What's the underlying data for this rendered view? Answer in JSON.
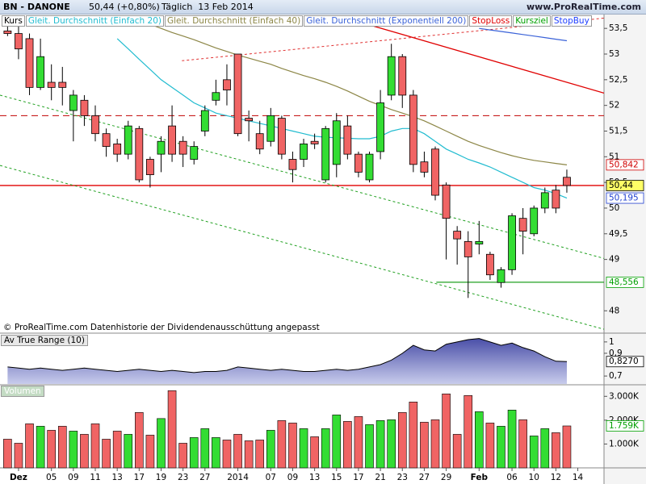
{
  "chart_data": {
    "type": "candlestick",
    "symbol": "BN - DANONE",
    "quote": "50,44 (+0,80%)",
    "period": "Täglich  13 Feb 2014",
    "site": "www.ProRealTime.com",
    "footer": "© ProRealTime.com  Datenhistorie der Dividendenausschüttung angepasst",
    "name": "Kurs",
    "color": "#000000",
    "up_color": "#33dd33",
    "down_color": "#f06464",
    "categories": [
      null,
      "Dez",
      null,
      null,
      "05",
      null,
      "09",
      null,
      "11",
      null,
      "13",
      null,
      "17",
      null,
      "19",
      null,
      "23",
      null,
      "27",
      null,
      null,
      "2014",
      null,
      null,
      "07",
      null,
      "09",
      null,
      "13",
      null,
      "15",
      null,
      "17",
      null,
      "21",
      null,
      "23",
      null,
      "27",
      null,
      "29",
      null,
      null,
      "Feb",
      null,
      null,
      "06",
      null,
      "10",
      null,
      "12",
      null,
      "14"
    ],
    "open": [
      53.45,
      53.4,
      53.3,
      52.35,
      52.45,
      52.45,
      51.9,
      52.1,
      51.8,
      51.45,
      51.25,
      51.05,
      51.55,
      50.95,
      51.05,
      51.6,
      51.3,
      50.95,
      51.5,
      52.1,
      52.5,
      53.0,
      51.75,
      51.45,
      51.3,
      51.75,
      50.95,
      50.95,
      51.3,
      50.55,
      50.85,
      51.6,
      51.05,
      50.55,
      51.1,
      52.2,
      52.95,
      52.2,
      50.9,
      51.15,
      50.45,
      49.55,
      49.35,
      49.3,
      49.1,
      48.55,
      48.8,
      49.8,
      49.5,
      50.0,
      50.35,
      50.6,
      null
    ],
    "high": [
      53.55,
      53.6,
      53.4,
      53.3,
      52.8,
      52.75,
      52.3,
      52.2,
      52.0,
      51.55,
      51.35,
      51.7,
      51.6,
      51.0,
      51.4,
      52.0,
      51.4,
      51.3,
      52.0,
      52.5,
      52.8,
      53.0,
      51.9,
      51.7,
      51.95,
      51.8,
      51.1,
      51.35,
      51.45,
      51.6,
      51.85,
      51.8,
      51.1,
      51.1,
      52.3,
      53.2,
      53.0,
      52.3,
      51.1,
      51.2,
      50.5,
      49.65,
      49.55,
      49.75,
      49.15,
      48.85,
      49.9,
      50.0,
      50.05,
      50.4,
      50.45,
      50.75,
      null
    ],
    "low": [
      53.35,
      52.9,
      52.2,
      52.3,
      52.1,
      52.0,
      51.3,
      51.6,
      51.3,
      51.0,
      50.9,
      50.95,
      50.5,
      50.4,
      50.7,
      50.9,
      50.8,
      50.85,
      51.4,
      52.0,
      52.0,
      51.4,
      51.3,
      51.05,
      51.2,
      50.95,
      50.5,
      50.8,
      51.15,
      50.5,
      50.6,
      50.95,
      50.6,
      50.5,
      50.95,
      52.1,
      51.95,
      50.7,
      50.6,
      50.15,
      49.0,
      48.9,
      48.25,
      49.1,
      48.6,
      48.45,
      48.7,
      49.1,
      49.45,
      49.9,
      49.9,
      50.3,
      null
    ],
    "close": [
      53.4,
      53.1,
      52.35,
      52.95,
      52.35,
      52.35,
      52.2,
      51.8,
      51.45,
      51.2,
      51.05,
      51.6,
      50.55,
      50.65,
      51.3,
      51.05,
      51.05,
      51.2,
      51.9,
      52.25,
      52.3,
      51.45,
      51.7,
      51.15,
      51.8,
      51.05,
      50.75,
      51.25,
      51.25,
      51.55,
      51.7,
      51.05,
      50.7,
      51.05,
      52.05,
      52.95,
      52.2,
      50.85,
      50.7,
      50.25,
      49.8,
      49.4,
      49.05,
      49.35,
      48.7,
      48.8,
      49.85,
      49.55,
      50.0,
      50.3,
      50.0,
      50.44,
      null
    ],
    "xlim": [
      -0.69,
      54.39
    ],
    "ylim": [
      47.58,
      53.77
    ],
    "yticks": [
      {
        "value": 53.5,
        "label": "53,5"
      },
      53,
      {
        "value": 52.5,
        "label": "52,5"
      },
      52,
      {
        "value": 51.5,
        "label": "51,5"
      },
      51,
      {
        "value": 50.5,
        "label": "50,5"
      },
      50,
      {
        "value": 49.5,
        "label": "49,5"
      },
      49,
      48
    ],
    "series": [
      {
        "name": "Gleit. Durchschnitt (Einfach 20)",
        "color": "#22bcd0",
        "values": [
          null,
          null,
          null,
          null,
          null,
          null,
          null,
          null,
          null,
          null,
          53.3,
          53.1,
          52.9,
          52.7,
          52.5,
          52.35,
          52.2,
          52.05,
          51.95,
          51.85,
          51.8,
          51.75,
          51.7,
          51.65,
          51.6,
          51.55,
          51.5,
          51.45,
          51.4,
          51.38,
          51.37,
          51.36,
          51.35,
          51.35,
          51.4,
          51.5,
          51.55,
          51.55,
          51.45,
          51.3,
          51.15,
          51.05,
          50.95,
          50.88,
          50.8,
          50.7,
          50.6,
          50.5,
          50.4,
          50.35,
          50.28,
          50.195,
          null
        ]
      },
      {
        "name": "Gleit. Durchschnitt (Einfach 40)",
        "color": "#8c8646",
        "values": [
          null,
          null,
          null,
          null,
          null,
          null,
          null,
          null,
          null,
          null,
          null,
          null,
          null,
          53.58,
          53.5,
          53.42,
          53.35,
          53.28,
          53.2,
          53.12,
          53.05,
          52.98,
          52.92,
          52.86,
          52.8,
          52.72,
          52.65,
          52.58,
          52.52,
          52.45,
          52.37,
          52.28,
          52.18,
          52.08,
          52.0,
          51.92,
          51.85,
          51.78,
          51.7,
          51.6,
          51.5,
          51.4,
          51.3,
          51.22,
          51.15,
          51.08,
          51.02,
          50.97,
          50.93,
          50.9,
          50.87,
          50.842,
          null
        ]
      },
      {
        "name": "Gleit. Durchschnitt (Exponentiell 200)",
        "color": "#3a62d8",
        "values": [
          null,
          null,
          null,
          null,
          null,
          null,
          null,
          null,
          null,
          null,
          null,
          null,
          null,
          null,
          null,
          null,
          null,
          null,
          null,
          null,
          null,
          null,
          null,
          null,
          null,
          null,
          null,
          null,
          null,
          null,
          null,
          null,
          null,
          null,
          null,
          null,
          null,
          null,
          null,
          null,
          null,
          null,
          null,
          53.5,
          53.47,
          53.44,
          53.41,
          53.38,
          53.35,
          53.32,
          53.29,
          53.26,
          null
        ]
      }
    ],
    "tools": [
      {
        "name": "StopLoss",
        "color": "#e00000"
      },
      {
        "name": "Kursziel",
        "color": "#00a000"
      },
      {
        "name": "StopBuy",
        "color": "#2040ff"
      }
    ],
    "trendlines": [
      {
        "color": "#c00000",
        "dashed": true,
        "x": [
          -0.69,
          54.39
        ],
        "y": [
          51.8,
          51.8
        ]
      },
      {
        "color": "#e00000",
        "dashed": false,
        "x": [
          -0.69,
          54.39
        ],
        "y": [
          50.44,
          50.44
        ]
      },
      {
        "color": "#e00000",
        "dashed": false,
        "x": [
          32.8,
          54.39
        ],
        "y": [
          53.58,
          52.24
        ]
      },
      {
        "color": "#e03030",
        "dashed": true,
        "x": [
          15.9,
          54.39
        ],
        "y": [
          52.87,
          53.7
        ]
      },
      {
        "color": "#20a020",
        "dashed": true,
        "x": [
          -0.69,
          54.39
        ],
        "y": [
          52.2,
          49.02
        ]
      },
      {
        "color": "#20a020",
        "dashed": true,
        "x": [
          -0.69,
          54.39
        ],
        "y": [
          50.83,
          47.64
        ]
      },
      {
        "color": "#20a020",
        "dashed": false,
        "x": [
          39.1,
          54.39
        ],
        "y": [
          48.556,
          48.556
        ]
      }
    ],
    "markers": [
      {
        "value": 50.842,
        "label": "50,842",
        "color": "#d00000",
        "background": "#ffffff"
      },
      {
        "value": 50.44,
        "label": "50,44",
        "color": "#000000",
        "background": "#ffff66"
      },
      {
        "value": 50.195,
        "label": "50,195",
        "color": "#2040d0",
        "background": "#ffffff"
      },
      {
        "value": 48.556,
        "label": "48,556",
        "color": "#00a000",
        "background": "#ffffff"
      }
    ],
    "atr": {
      "title": "Av True Range (10)",
      "color": "#5a5fb8",
      "values": [
        0.78,
        0.77,
        0.76,
        0.77,
        0.76,
        0.75,
        0.76,
        0.77,
        0.76,
        0.75,
        0.74,
        0.75,
        0.76,
        0.75,
        0.74,
        0.75,
        0.74,
        0.73,
        0.74,
        0.74,
        0.75,
        0.78,
        0.77,
        0.76,
        0.75,
        0.76,
        0.75,
        0.74,
        0.74,
        0.75,
        0.76,
        0.75,
        0.76,
        0.78,
        0.8,
        0.84,
        0.9,
        0.97,
        0.93,
        0.92,
        0.98,
        1.0,
        1.02,
        1.03,
        1.0,
        0.97,
        0.99,
        0.95,
        0.92,
        0.87,
        0.83,
        0.827,
        null
      ],
      "ylim": [
        0.63,
        1.07
      ],
      "yticks": [
        1,
        {
          "value": 0.9,
          "label": "0,9"
        },
        {
          "value": 0.7,
          "label": "0,7"
        }
      ],
      "markers": [
        {
          "value": 0.827,
          "label": "0,8270",
          "color": "#000000",
          "background": "#ffffff"
        }
      ]
    },
    "volume": {
      "title": "Volumen",
      "values": [
        1203,
        1034,
        1847,
        1746,
        1576,
        1746,
        1542,
        1407,
        1847,
        1203,
        1542,
        1407,
        2322,
        1373,
        2068,
        3237,
        1034,
        1271,
        1644,
        1271,
        1169,
        1407,
        1136,
        1169,
        1576,
        1983,
        1881,
        1644,
        1305,
        1644,
        2220,
        1949,
        2152,
        1813,
        1983,
        2017,
        2322,
        2763,
        1915,
        2017,
        3102,
        1407,
        3034,
        2356,
        1881,
        1746,
        2424,
        2017,
        1339,
        1644,
        1475,
        1759,
        null
      ],
      "ylim": [
        0,
        3450
      ],
      "yticks": [
        {
          "value": 3000,
          "label": "3.000K"
        },
        {
          "value": 2000,
          "label": "2.000K"
        },
        {
          "value": 1000,
          "label": "1.000K"
        }
      ],
      "markers": [
        {
          "value": 1759,
          "label": "1.759K",
          "color": "#00a000",
          "background": "#ffffff"
        }
      ]
    }
  }
}
